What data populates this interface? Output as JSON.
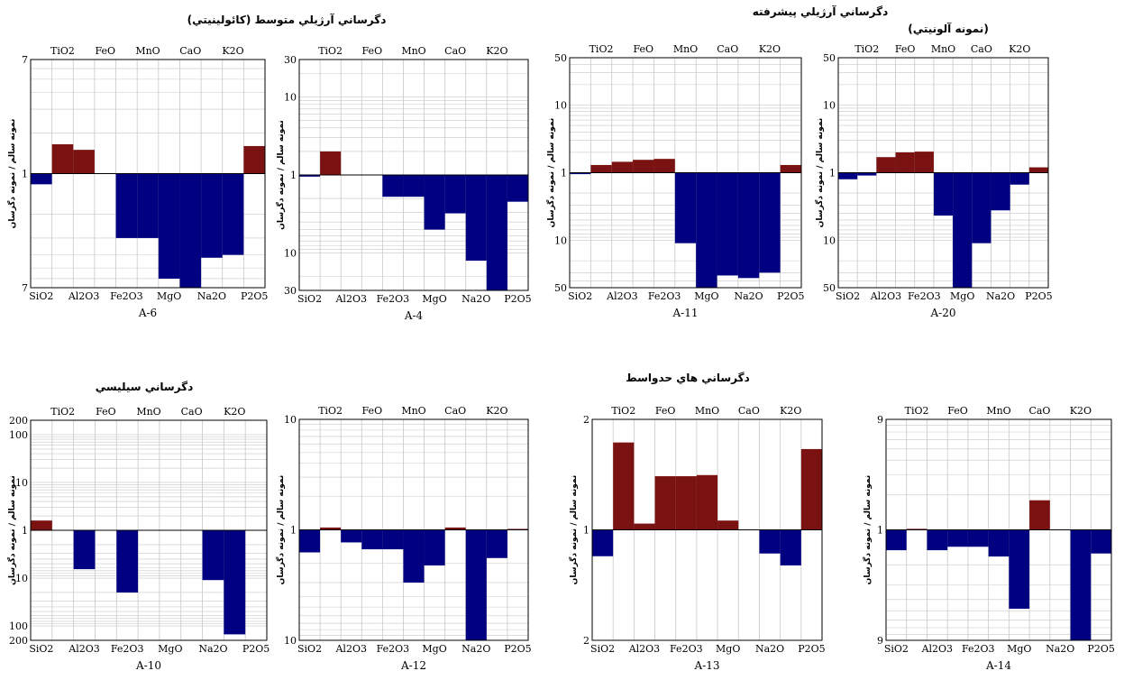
{
  "headings": {
    "top_left": "دگرساني آرژيلي متوسط (كائولينيتي)",
    "top_right_line1": "دگرساني آرژيلي پيشرفته",
    "top_right_line2": "(نمونه آلونيتي)",
    "bottom_left": "دگرساني سيليسي",
    "bottom_right": "دگرساني هاي حدواسط"
  },
  "colors": {
    "gain": "#7a1212",
    "loss": "#000080",
    "grid": "#c8c8c8"
  },
  "chart_data": [
    {
      "type": "bar",
      "sample": "A-6",
      "ylabel": "نمونه سالم / نمونه دگرسان",
      "yscale": "log-symmetric",
      "ytick_labels": [
        "7",
        "1",
        "7"
      ],
      "categories": [
        "SiO2",
        "TiO2",
        "Al2O3",
        "FeO",
        "Fe2O3",
        "MnO",
        "MgO",
        "CaO",
        "Na2O",
        "K2O",
        "P2O5"
      ],
      "values": [
        -1.2,
        1.65,
        1.5,
        1.0,
        -3.0,
        -3.0,
        -6.0,
        -7.0,
        -4.2,
        -4.0,
        1.6
      ]
    },
    {
      "type": "bar",
      "sample": "A-4",
      "ylabel": "نمونه سالم / نمونه دگرسان",
      "yscale": "log-symmetric",
      "ytick_labels": [
        "30",
        "10",
        "1",
        "10",
        "30"
      ],
      "categories": [
        "SiO2",
        "TiO2",
        "Al2O3",
        "FeO",
        "Fe2O3",
        "MnO",
        "MgO",
        "CaO",
        "Na2O",
        "K2O",
        "P2O5"
      ],
      "values": [
        -1.05,
        2.0,
        1.0,
        1.0,
        -1.9,
        -1.9,
        -5.0,
        -3.1,
        -12.5,
        -30.0,
        -2.2
      ]
    },
    {
      "type": "bar",
      "sample": "A-11",
      "ylabel": "نمونه سالم / نمونه دگرسان",
      "yscale": "log-symmetric",
      "ytick_labels": [
        "50",
        "10",
        "1",
        "10",
        "50"
      ],
      "categories": [
        "SiO2",
        "TiO2",
        "Al2O3",
        "FeO",
        "Fe2O3",
        "MnO",
        "MgO",
        "CaO",
        "Na2O",
        "K2O",
        "P2O5"
      ],
      "values": [
        -1.05,
        1.3,
        1.45,
        1.55,
        1.6,
        -11.0,
        -50.0,
        -33.0,
        -36.0,
        -30.0,
        1.3
      ]
    },
    {
      "type": "bar",
      "sample": "A-20",
      "ylabel": "نمونه سالم / نمونه دگرسان",
      "yscale": "log-symmetric",
      "ytick_labels": [
        "50",
        "10",
        "1",
        "10",
        "50"
      ],
      "categories": [
        "SiO2",
        "TiO2",
        "Al2O3",
        "FeO",
        "Fe2O3",
        "MnO",
        "MgO",
        "CaO",
        "Na2O",
        "K2O",
        "P2O5"
      ],
      "values": [
        -1.25,
        -1.1,
        1.7,
        2.0,
        2.05,
        -4.3,
        -50.0,
        -11.0,
        -3.6,
        -1.5,
        1.2
      ]
    },
    {
      "type": "bar",
      "sample": "A-10",
      "ylabel": "نمونه سالم / نمونه دگرسان",
      "yscale": "log-symmetric",
      "ytick_labels": [
        "200",
        "100",
        "10",
        "1",
        "10",
        "100",
        "200"
      ],
      "categories": [
        "SiO2",
        "TiO2",
        "Al2O3",
        "FeO",
        "Fe2O3",
        "MnO",
        "MgO",
        "CaO",
        "Na2O",
        "K2O",
        "P2O5"
      ],
      "values": [
        1.6,
        1.0,
        -6.5,
        1.0,
        -20.0,
        1.0,
        1.0,
        1.0,
        -11.0,
        -150.0,
        1.0
      ]
    },
    {
      "type": "bar",
      "sample": "A-12",
      "ylabel": "نمونه سالم / نمونه دگرسان",
      "yscale": "log-symmetric",
      "ytick_labels": [
        "10",
        "1",
        "10"
      ],
      "categories": [
        "SiO2",
        "TiO2",
        "Al2O3",
        "FeO",
        "Fe2O3",
        "MnO",
        "MgO",
        "CaO",
        "Na2O",
        "K2O",
        "P2O5"
      ],
      "values": [
        -1.6,
        1.05,
        -1.3,
        -1.5,
        -1.5,
        -3.0,
        -2.1,
        1.05,
        -10.0,
        -1.8,
        1.02
      ]
    },
    {
      "type": "bar",
      "sample": "A-13",
      "ylabel": "نمونه سالم / نمونه دگرسان",
      "yscale": "log-symmetric",
      "ytick_labels": [
        "2",
        "1",
        "2"
      ],
      "categories": [
        "SiO2",
        "TiO2",
        "Al2O3",
        "FeO",
        "Fe2O3",
        "MnO",
        "MgO",
        "CaO",
        "Na2O",
        "K2O",
        "P2O5"
      ],
      "values": [
        -1.18,
        1.73,
        1.04,
        1.4,
        1.4,
        1.41,
        1.06,
        1.0,
        -1.16,
        -1.25,
        1.66
      ]
    },
    {
      "type": "bar",
      "sample": "A-14",
      "ylabel": "نمونه سالم / نمونه دگرسان",
      "yscale": "log-symmetric",
      "ytick_labels": [
        "9",
        "1",
        "9"
      ],
      "categories": [
        "SiO2",
        "TiO2",
        "Al2O3",
        "FeO",
        "Fe2O3",
        "MnO",
        "MgO",
        "CaO",
        "Na2O",
        "K2O",
        "P2O5"
      ],
      "values": [
        -1.5,
        1.02,
        -1.5,
        -1.4,
        -1.4,
        -1.7,
        -4.8,
        1.8,
        1.0,
        -9.0,
        -1.6
      ]
    }
  ]
}
